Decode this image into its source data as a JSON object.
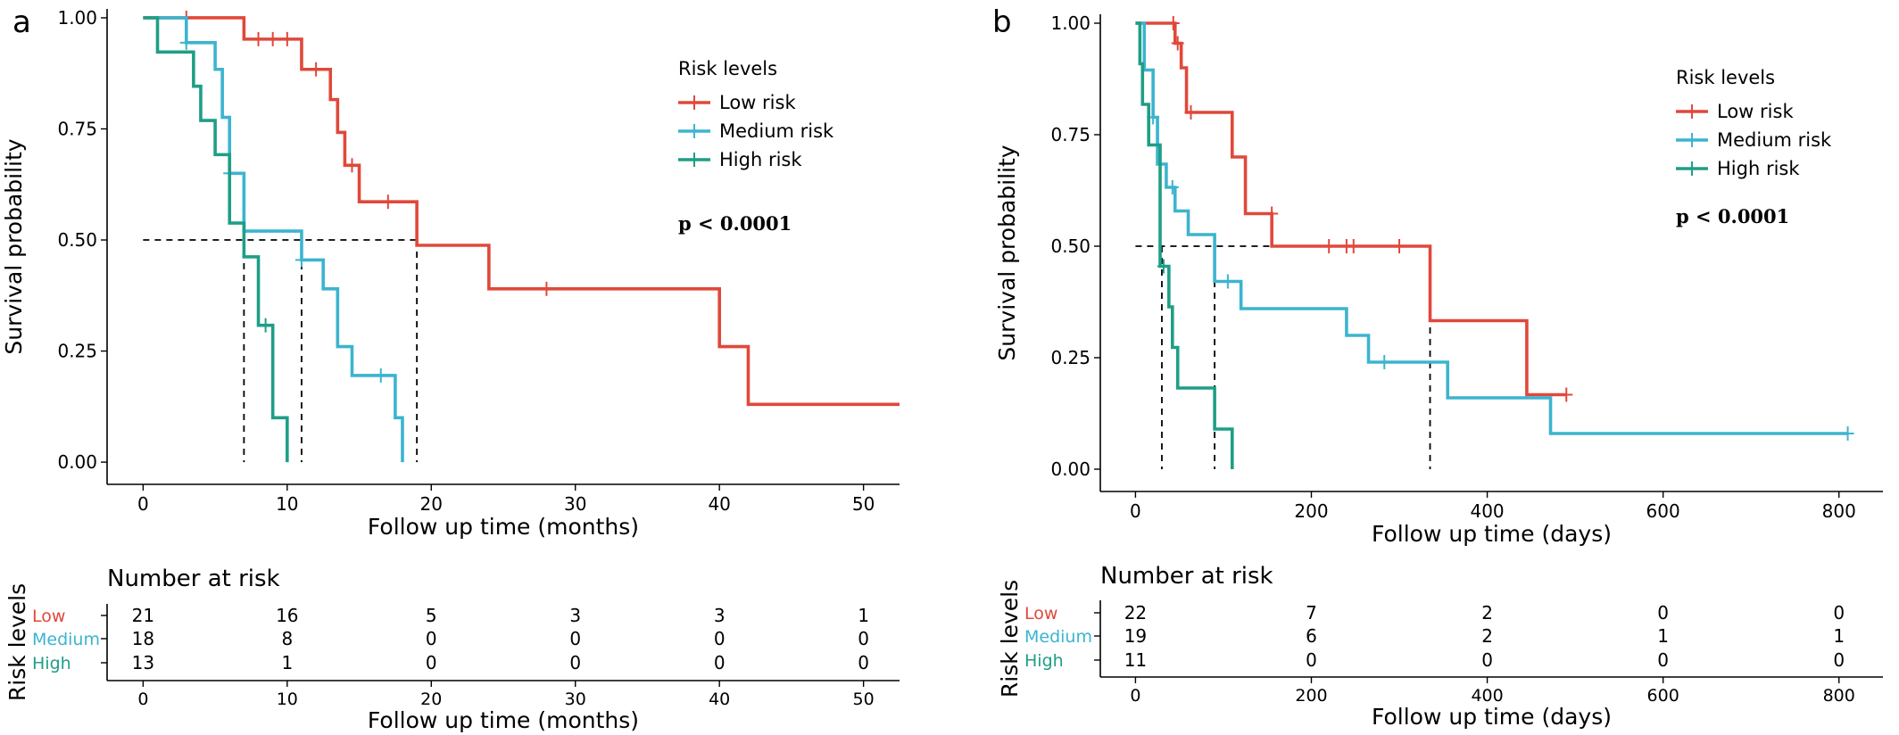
{
  "colors": {
    "low": "#E0483B",
    "medium": "#3CB4CF",
    "high": "#1F9E86",
    "axis": "#000000"
  },
  "chart_data": [
    {
      "panel_label": "a",
      "type": "line",
      "xlabel": "Follow up time (months)",
      "ylabel": "Survival probability",
      "xlim": [
        -2.5,
        52.5
      ],
      "ylim": [
        -0.05,
        1.02
      ],
      "xticks": [
        0,
        10,
        20,
        30,
        40,
        50
      ],
      "yticks": [
        0,
        0.25,
        0.5,
        0.75,
        1.0
      ],
      "ytick_labels": [
        "0.00",
        "0.25",
        "0.50",
        "0.75",
        "1.00"
      ],
      "grid": false,
      "legend": {
        "title": "Risk levels",
        "placement": "top-right"
      },
      "pvalue": "p < 0.0001",
      "median_line": {
        "y": 0.5,
        "x": [
          7,
          11,
          19
        ],
        "x_start": 0
      },
      "series": [
        {
          "name": "Low risk",
          "color_key": "low",
          "steps": [
            [
              0,
              1.0
            ],
            [
              7,
              0.952
            ],
            [
              11,
              0.884
            ],
            [
              13,
              0.816
            ],
            [
              13.5,
              0.742
            ],
            [
              14,
              0.668
            ],
            [
              15,
              0.586
            ],
            [
              19,
              0.488
            ],
            [
              24,
              0.39
            ],
            [
              40,
              0.26
            ],
            [
              42,
              0.13
            ],
            [
              52.5,
              0.13
            ]
          ],
          "censors": [
            [
              3,
              1.0
            ],
            [
              8,
              0.952
            ],
            [
              9,
              0.952
            ],
            [
              10,
              0.952
            ],
            [
              12,
              0.884
            ],
            [
              14.5,
              0.668
            ],
            [
              17,
              0.586
            ],
            [
              28,
              0.39
            ]
          ]
        },
        {
          "name": "Medium risk",
          "color_key": "medium",
          "steps": [
            [
              1,
              1.0
            ],
            [
              3,
              0.944
            ],
            [
              5,
              0.884
            ],
            [
              5.5,
              0.776
            ],
            [
              6,
              0.65
            ],
            [
              7,
              0.52
            ],
            [
              11,
              0.455
            ],
            [
              12.5,
              0.39
            ],
            [
              13.5,
              0.26
            ],
            [
              14.5,
              0.195
            ],
            [
              17.5,
              0.1
            ],
            [
              18,
              0
            ]
          ],
          "censors": [
            [
              3,
              0.944
            ],
            [
              6,
              0.65
            ],
            [
              11,
              0.455
            ],
            [
              16.5,
              0.195
            ]
          ]
        },
        {
          "name": "High risk",
          "color_key": "high",
          "steps": [
            [
              0,
              1.0
            ],
            [
              1,
              0.923
            ],
            [
              3.5,
              0.846
            ],
            [
              4,
              0.769
            ],
            [
              5,
              0.692
            ],
            [
              6,
              0.538
            ],
            [
              7,
              0.462
            ],
            [
              8,
              0.308
            ],
            [
              9,
              0.1
            ],
            [
              10,
              0
            ]
          ],
          "censors": [
            [
              8.5,
              0.308
            ]
          ]
        }
      ],
      "risk_table": {
        "title": "Number at risk",
        "ylabel": "Risk levels",
        "xlabel": "Follow up time (months)",
        "times": [
          0,
          10,
          20,
          30,
          40,
          50
        ],
        "rows": [
          {
            "label": "Low",
            "color_key": "low",
            "values": [
              "21",
              "16",
              "5",
              "3",
              "3",
              "1"
            ]
          },
          {
            "label": "Medium",
            "color_key": "medium",
            "values": [
              "18",
              "8",
              "0",
              "0",
              "0",
              "0"
            ]
          },
          {
            "label": "High",
            "color_key": "high",
            "values": [
              "13",
              "1",
              "0",
              "0",
              "0",
              "0"
            ]
          }
        ]
      }
    },
    {
      "panel_label": "b",
      "type": "line",
      "xlabel": "Follow up time (days)",
      "ylabel": "Survival probability",
      "xlim": [
        -40,
        850
      ],
      "ylim": [
        -0.05,
        1.02
      ],
      "xticks": [
        0,
        200,
        400,
        600,
        800
      ],
      "yticks": [
        0,
        0.25,
        0.5,
        0.75,
        1.0
      ],
      "ytick_labels": [
        "0.00",
        "0.25",
        "0.50",
        "0.75",
        "1.00"
      ],
      "grid": false,
      "legend": {
        "title": "Risk levels",
        "placement": "top-right"
      },
      "pvalue": "p < 0.0001",
      "median_line": {
        "y": 0.5,
        "x": [
          30,
          90,
          335
        ],
        "x_start": 0
      },
      "series": [
        {
          "name": "Low risk",
          "color_key": "low",
          "steps": [
            [
              0,
              1.0
            ],
            [
              45,
              0.955
            ],
            [
              52,
              0.9
            ],
            [
              58,
              0.8
            ],
            [
              110,
              0.7
            ],
            [
              125,
              0.573
            ],
            [
              155,
              0.5
            ],
            [
              335,
              0.333
            ],
            [
              445,
              0.167
            ],
            [
              490,
              0.167
            ]
          ],
          "censors": [
            [
              43,
              1.0
            ],
            [
              48,
              0.955
            ],
            [
              63,
              0.8
            ],
            [
              155,
              0.573
            ],
            [
              220,
              0.5
            ],
            [
              240,
              0.5
            ],
            [
              248,
              0.5
            ],
            [
              300,
              0.5
            ],
            [
              490,
              0.167
            ]
          ]
        },
        {
          "name": "Medium risk",
          "color_key": "medium",
          "steps": [
            [
              2,
              1.0
            ],
            [
              10,
              0.895
            ],
            [
              20,
              0.789
            ],
            [
              25,
              0.684
            ],
            [
              35,
              0.632
            ],
            [
              45,
              0.579
            ],
            [
              60,
              0.526
            ],
            [
              90,
              0.421
            ],
            [
              120,
              0.36
            ],
            [
              240,
              0.3
            ],
            [
              265,
              0.24
            ],
            [
              355,
              0.16
            ],
            [
              472,
              0.08
            ],
            [
              810,
              0.08
            ]
          ],
          "censors": [
            [
              20,
              0.789
            ],
            [
              42,
              0.632
            ],
            [
              105,
              0.421
            ],
            [
              283,
              0.24
            ],
            [
              810,
              0.08
            ]
          ]
        },
        {
          "name": "High risk",
          "color_key": "high",
          "steps": [
            [
              0,
              1.0
            ],
            [
              5,
              0.909
            ],
            [
              8,
              0.818
            ],
            [
              15,
              0.727
            ],
            [
              28,
              0.455
            ],
            [
              38,
              0.364
            ],
            [
              42,
              0.273
            ],
            [
              48,
              0.182
            ],
            [
              90,
              0.09
            ],
            [
              110,
              0
            ]
          ],
          "censors": [
            [
              32,
              0.455
            ]
          ]
        }
      ],
      "risk_table": {
        "title": "Number at risk",
        "ylabel": "Risk levels",
        "xlabel": "Follow up time (days)",
        "times": [
          0,
          200,
          400,
          600,
          800
        ],
        "rows": [
          {
            "label": "Low",
            "color_key": "low",
            "values": [
              "22",
              "7",
              "2",
              "0",
              "0"
            ]
          },
          {
            "label": "Medium",
            "color_key": "medium",
            "values": [
              "19",
              "6",
              "2",
              "1",
              "1"
            ]
          },
          {
            "label": "High",
            "color_key": "high",
            "values": [
              "11",
              "0",
              "0",
              "0",
              "0"
            ]
          }
        ]
      }
    }
  ]
}
